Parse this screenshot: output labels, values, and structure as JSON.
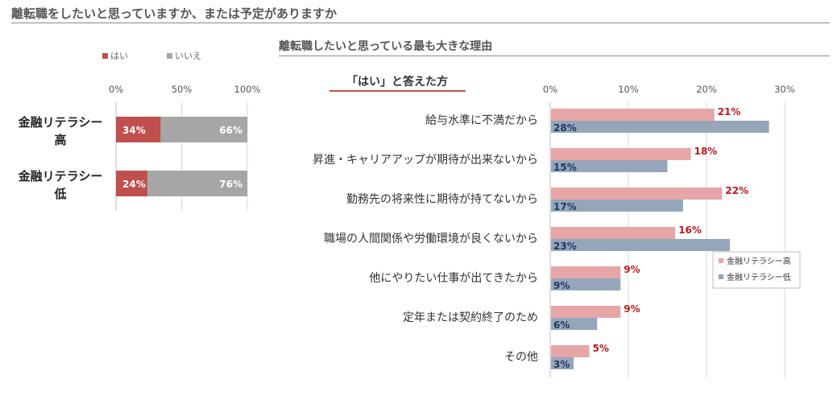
{
  "page": {
    "title": "離転職をしたいと思っていますか、または予定がありますか",
    "right_title": "離転職したいと思っている最も大きな理由"
  },
  "colors": {
    "hai": "#c0504d",
    "iie": "#a6a6a6",
    "high": "#e6a6a7",
    "low": "#95a6ba",
    "label_red": "#c0171d",
    "label_navy": "#1f3864"
  },
  "chart_data": [
    {
      "type": "bar",
      "orientation": "horizontal",
      "stacked": true,
      "categories": [
        "金融リテラシー\n高",
        "金融リテラシー\n低"
      ],
      "series": [
        {
          "name": "はい",
          "values": [
            34,
            24
          ],
          "labels": [
            "34%",
            "24%"
          ]
        },
        {
          "name": "いいえ",
          "values": [
            66,
            76
          ],
          "labels": [
            "66%",
            "76%"
          ]
        }
      ],
      "xlim": [
        0,
        100
      ],
      "xticks": [
        "0%",
        "50%",
        "100%"
      ],
      "legend": "top",
      "grid": true
    },
    {
      "type": "bar",
      "orientation": "horizontal",
      "subtitle": "「はい」と答えた方",
      "categories": [
        "給与水準に不満だから",
        "昇進・キャリアアップが期待が出来ないから",
        "勤務先の将来性に期待が持てないから",
        "職場の人間関係や労働環境が良くないから",
        "他にやりたい仕事が出てきたから",
        "定年または契約終了のため",
        "その他"
      ],
      "series": [
        {
          "name": "金融リテラシー高",
          "values": [
            21,
            18,
            22,
            16,
            9,
            9,
            5
          ],
          "labels": [
            "21%",
            "18%",
            "22%",
            "16%",
            "9%",
            "9%",
            "5%"
          ]
        },
        {
          "name": "金融リテラシー低",
          "values": [
            28,
            15,
            17,
            23,
            9,
            6,
            3
          ],
          "labels": [
            "28%",
            "15%",
            "17%",
            "23%",
            "9%",
            "6%",
            "3%"
          ]
        }
      ],
      "xlim": [
        0,
        30
      ],
      "xticks": [
        "0%",
        "10%",
        "20%",
        "30%"
      ],
      "legend": "right",
      "grid": true
    }
  ]
}
